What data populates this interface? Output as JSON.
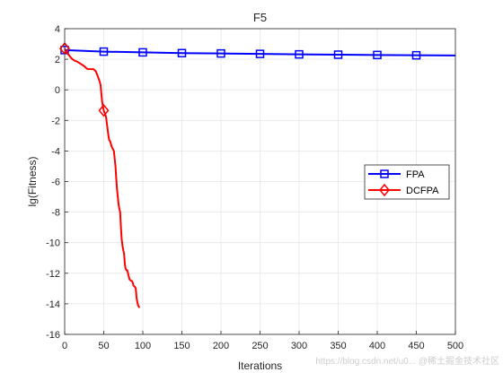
{
  "chart_data": {
    "type": "line",
    "title": "F5",
    "xlabel": "Iterations",
    "ylabel": "lg(Fitness)",
    "xlim": [
      0,
      500
    ],
    "ylim": [
      -16,
      4
    ],
    "xticks": [
      0,
      50,
      100,
      150,
      200,
      250,
      300,
      350,
      400,
      450,
      500
    ],
    "yticks": [
      -16,
      -14,
      -12,
      -10,
      -8,
      -6,
      -4,
      -2,
      0,
      2,
      4
    ],
    "grid": true,
    "legend_position": "right",
    "series": [
      {
        "name": "FPA",
        "color": "#0000ff",
        "marker": "square",
        "x": [
          0,
          50,
          100,
          150,
          200,
          250,
          300,
          350,
          400,
          450,
          500
        ],
        "y": [
          2.6,
          2.5,
          2.45,
          2.4,
          2.38,
          2.35,
          2.32,
          2.3,
          2.28,
          2.26,
          2.25
        ],
        "marker_x": [
          0,
          50,
          100,
          150,
          200,
          250,
          300,
          350,
          400,
          450
        ]
      },
      {
        "name": "DCFPA",
        "color": "#ff0000",
        "marker": "diamond",
        "x": [
          0,
          2,
          5,
          8,
          10,
          13,
          16,
          19,
          22,
          25,
          28,
          30,
          33,
          37,
          40,
          43,
          45,
          46,
          47,
          48,
          49,
          50,
          51,
          52,
          53,
          54,
          55,
          56,
          57,
          58,
          59,
          60,
          61,
          62,
          63,
          64,
          65,
          66,
          67,
          68,
          69,
          70,
          71,
          72,
          73,
          74,
          75,
          76,
          77,
          78,
          79,
          80,
          81,
          82,
          83,
          84,
          85,
          86,
          87,
          88,
          89,
          90,
          91,
          92,
          93,
          94,
          95,
          96
        ],
        "y": [
          2.7,
          2.5,
          2.3,
          2.1,
          2.0,
          1.9,
          1.85,
          1.75,
          1.65,
          1.55,
          1.4,
          1.35,
          1.35,
          1.35,
          1.2,
          0.8,
          0.5,
          0.3,
          -0.3,
          -0.8,
          -1.1,
          -1.35,
          -1.5,
          -1.6,
          -1.8,
          -2.2,
          -2.6,
          -3.0,
          -3.3,
          -3.35,
          -3.5,
          -3.7,
          -3.8,
          -3.9,
          -4.0,
          -4.5,
          -5.0,
          -5.8,
          -6.5,
          -7.0,
          -7.5,
          -7.8,
          -8.0,
          -9.0,
          -9.8,
          -10.2,
          -10.5,
          -10.7,
          -11.4,
          -11.7,
          -11.8,
          -11.8,
          -12.0,
          -12.2,
          -12.4,
          -12.45,
          -12.5,
          -12.5,
          -12.6,
          -12.8,
          -12.85,
          -12.9,
          -13.0,
          -13.6,
          -13.9,
          -14.1,
          -14.2,
          -14.25
        ],
        "marker_x": [
          0,
          50
        ]
      }
    ]
  },
  "watermark": "https://blog.csdn.net/u0... @稀土掘金技术社区"
}
